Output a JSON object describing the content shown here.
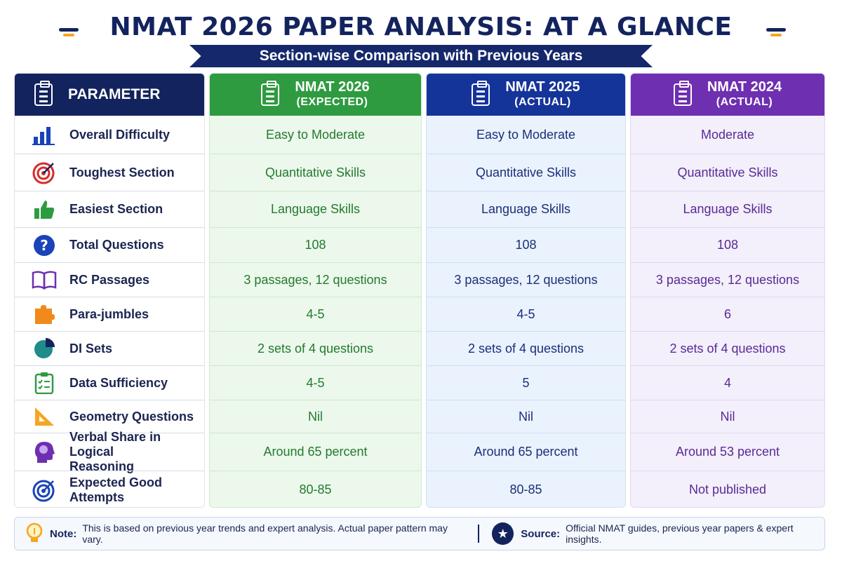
{
  "header": {
    "title": "NMAT 2026 PAPER ANALYSIS: AT A GLANCE",
    "subtitle": "Section-wise Comparison with Previous Years"
  },
  "table": {
    "param_header": "PARAMETER",
    "columns": [
      {
        "line1": "NMAT 2026",
        "line2": "(EXPECTED)",
        "color": "#2e9b40"
      },
      {
        "line1": "NMAT 2025",
        "line2": "(ACTUAL)",
        "color": "#15349a"
      },
      {
        "line1": "NMAT 2024",
        "line2": "(ACTUAL)",
        "color": "#6e2fb0"
      }
    ],
    "rows": [
      {
        "parameter": "Overall Difficulty",
        "icon": "bar-chart-icon",
        "v2026": "Easy to Moderate",
        "v2025": "Easy to Moderate",
        "v2024": "Moderate"
      },
      {
        "parameter": "Toughest Section",
        "icon": "target-icon",
        "v2026": "Quantitative Skills",
        "v2025": "Quantitative Skills",
        "v2024": "Quantitative Skills"
      },
      {
        "parameter": "Easiest Section",
        "icon": "thumbs-up-icon",
        "v2026": "Language Skills",
        "v2025": "Language Skills",
        "v2024": "Language Skills"
      },
      {
        "parameter": "Total Questions",
        "icon": "question-icon",
        "v2026": "108",
        "v2025": "108",
        "v2024": "108"
      },
      {
        "parameter": "RC Passages",
        "icon": "book-icon",
        "v2026": "3 passages, 12 questions",
        "v2025": "3 passages, 12 questions",
        "v2024": "3 passages, 12 questions"
      },
      {
        "parameter": "Para-jumbles",
        "icon": "puzzle-icon",
        "v2026": "4-5",
        "v2025": "4-5",
        "v2024": "6"
      },
      {
        "parameter": "DI Sets",
        "icon": "pie-chart-icon",
        "v2026": "2 sets of 4 questions",
        "v2025": "2 sets of 4 questions",
        "v2024": "2 sets of 4 questions"
      },
      {
        "parameter": "Data Sufficiency",
        "icon": "checklist-icon",
        "v2026": "4-5",
        "v2025": "5",
        "v2024": "4"
      },
      {
        "parameter": "Geometry Questions",
        "icon": "set-square-icon",
        "v2026": "Nil",
        "v2025": "Nil",
        "v2024": "Nil"
      },
      {
        "parameter": "Verbal Share in Logical Reasoning",
        "icon": "brain-head-icon",
        "v2026": "Around 65 percent",
        "v2025": "Around 65 percent",
        "v2024": "Around 53 percent"
      },
      {
        "parameter": "Expected Good Attempts",
        "icon": "bullseye-icon",
        "v2026": "80-85",
        "v2025": "80-85",
        "v2024": "Not published"
      }
    ]
  },
  "footer": {
    "note_label": "Note:",
    "note_text": "This is based on previous year trends and expert analysis. Actual paper pattern may vary.",
    "source_label": "Source:",
    "source_text": "Official NMAT guides, previous year papers & expert insights."
  }
}
